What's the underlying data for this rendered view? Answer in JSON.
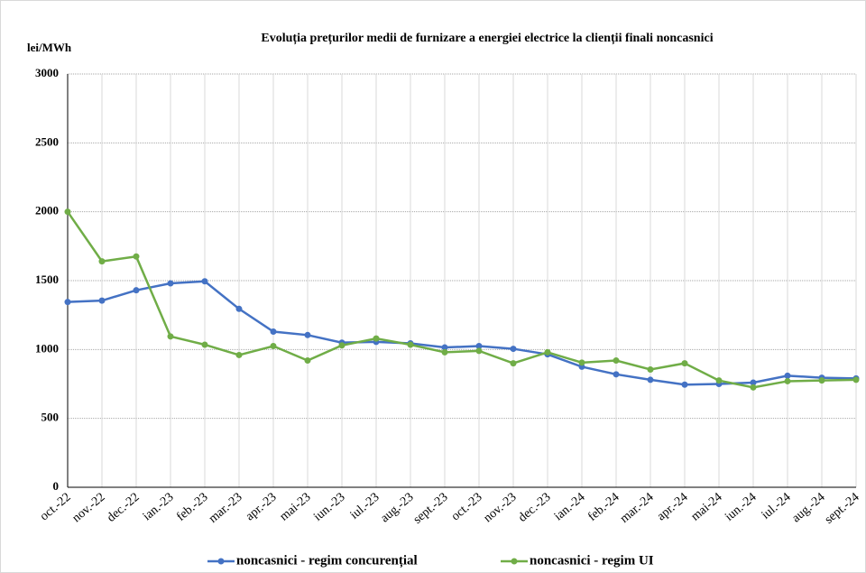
{
  "chart_data": {
    "type": "line",
    "title": "Evoluția prețurilor medii de furnizare a energiei electrice la clienții finali noncasnici",
    "y_label": "lei/MWh",
    "categories": [
      "oct.-22",
      "nov.-22",
      "dec.-22",
      "ian.-23",
      "feb.-23",
      "mar.-23",
      "apr.-23",
      "mai-23",
      "iun.-23",
      "iul.-23",
      "aug.-23",
      "sept.-23",
      "oct.-23",
      "nov.-23",
      "dec.-23",
      "ian.-24",
      "feb.-24",
      "mar.-24",
      "apr.-24",
      "mai-24",
      "iun.-24",
      "iul.-24",
      "aug.-24",
      "sept.-24"
    ],
    "series": [
      {
        "name": "noncasnici - regim concurențial",
        "color": "#4472c4",
        "values": [
          1345,
          1355,
          1430,
          1480,
          1495,
          1295,
          1130,
          1105,
          1050,
          1055,
          1045,
          1015,
          1025,
          1005,
          965,
          875,
          820,
          780,
          745,
          750,
          760,
          810,
          795,
          790
        ]
      },
      {
        "name": "noncasnici - regim UI",
        "color": "#70ad47",
        "values": [
          2000,
          1640,
          1675,
          1095,
          1035,
          960,
          1025,
          920,
          1030,
          1080,
          1035,
          980,
          990,
          900,
          980,
          905,
          920,
          855,
          900,
          775,
          725,
          770,
          775,
          780
        ]
      }
    ],
    "ylim": [
      0,
      3000
    ],
    "yticks": [
      0,
      500,
      1000,
      1500,
      2000,
      2500,
      3000
    ],
    "grid": true,
    "legend": "bottom"
  }
}
